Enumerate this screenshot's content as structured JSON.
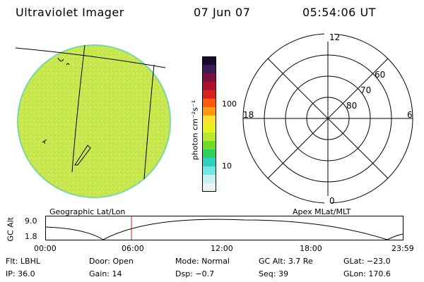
{
  "header": {
    "title": "Ultraviolet Imager",
    "date": "07 Jun 07",
    "time": "05:54:06 UT"
  },
  "colorbar": {
    "unit_label": "photon cm⁻²s⁻¹",
    "ticks": [
      "100",
      "10"
    ],
    "colors": [
      "#1a0a2a",
      "#3a1a5a",
      "#7a1040",
      "#b01030",
      "#d82020",
      "#ff5a10",
      "#ff9a10",
      "#ffe030",
      "#e8f020",
      "#b8e828",
      "#70dc28",
      "#30d060",
      "#30d0c0",
      "#70e8e8",
      "#c8f0f0",
      "#e8f4f4"
    ]
  },
  "left_panel": {
    "caption": "Geographic Lat/Lon",
    "fill_color": "#c8e850"
  },
  "polar_plot": {
    "caption": "Apex MLat/MLT",
    "mlt_labels": [
      "12",
      "18",
      "6",
      "0"
    ],
    "lat_labels": [
      "60",
      "70",
      "80"
    ]
  },
  "timeline": {
    "ylabel": "GC Alt",
    "y_ticks": [
      "9.0",
      "1.8"
    ],
    "x_ticks": [
      "00:00",
      "06:00",
      "12:00",
      "18:00",
      "23:59"
    ],
    "marker_color": "#d02020"
  },
  "info": {
    "rows": [
      [
        {
          "label": "Flt:",
          "value": "LBHL"
        },
        {
          "label": "Door:",
          "value": "Open"
        },
        {
          "label": "Mode:",
          "value": "Normal"
        },
        {
          "label": "GC Alt:",
          "value": "3.7 Re"
        },
        {
          "label": "GLat:",
          "value": "−23.0"
        }
      ],
      [
        {
          "label": "IP:",
          "value": "36.0"
        },
        {
          "label": "Gain:",
          "value": "14"
        },
        {
          "label": "Dsp:",
          "value": "−0.7"
        },
        {
          "label": "Seq:",
          "value": "39"
        },
        {
          "label": "GLon:",
          "value": "170.6"
        }
      ]
    ]
  }
}
